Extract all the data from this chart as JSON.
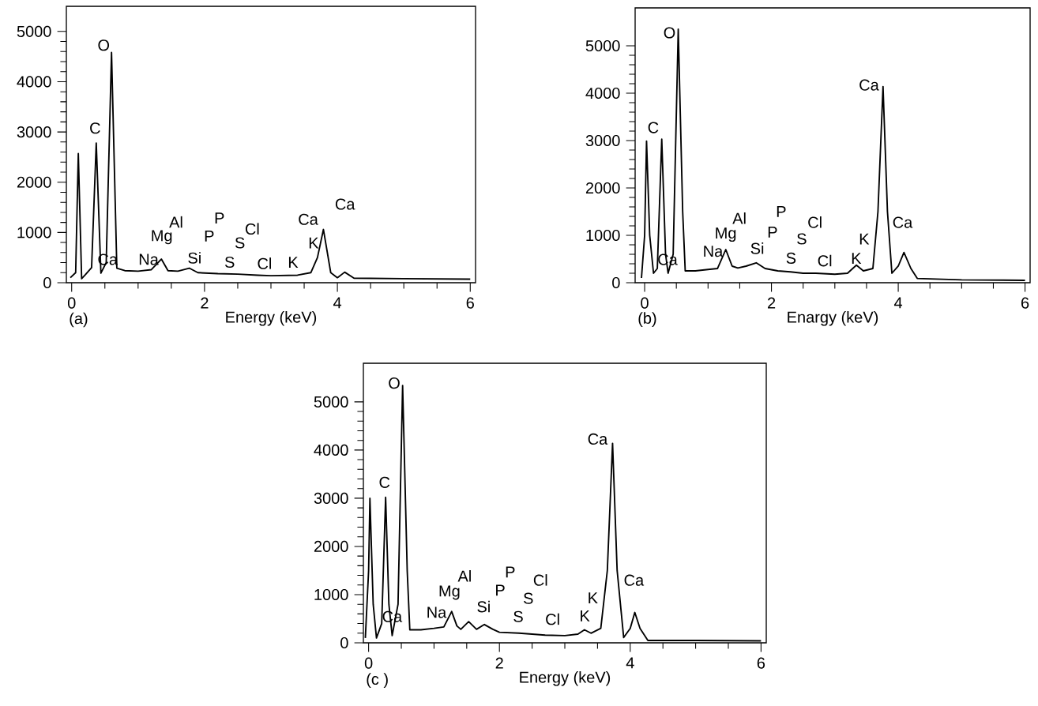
{
  "chart_data": [
    {
      "type": "line",
      "xlabel": "Energy (keV)",
      "xlim": [
        -0.08,
        6.08
      ],
      "ylim": [
        0,
        5500
      ],
      "xticks": [
        0,
        2,
        4,
        6
      ],
      "yticks": [
        0,
        1000,
        2000,
        3000,
        4000,
        5000
      ],
      "series": [
        {
          "color": "#000000",
          "x": [
            -0.02,
            0.06,
            0.1,
            0.15,
            0.2,
            0.3,
            0.37,
            0.44,
            0.52,
            0.6,
            0.68,
            0.8,
            1.0,
            1.2,
            1.35,
            1.45,
            1.6,
            1.77,
            1.9,
            2.2,
            2.5,
            2.8,
            3.0,
            3.4,
            3.6,
            3.7,
            3.79,
            3.9,
            4.0,
            4.11,
            4.25,
            5.0,
            6.0
          ],
          "values": [
            100,
            200,
            2570,
            80,
            150,
            300,
            2780,
            190,
            400,
            4580,
            290,
            240,
            230,
            260,
            470,
            240,
            230,
            290,
            200,
            180,
            170,
            150,
            140,
            150,
            200,
            500,
            1060,
            200,
            100,
            210,
            90,
            80,
            70
          ]
        }
      ],
      "annotations": [
        "C",
        "O",
        "Ca",
        "Na",
        "Mg",
        "Al",
        "Si",
        "P",
        "P",
        "Cl",
        "S",
        "S",
        "Cl",
        "K",
        "K",
        "Ca",
        "Ca",
        "(a)"
      ]
    },
    {
      "type": "line",
      "xlabel": "Enargy (keV)",
      "xlim": [
        -0.15,
        6.08
      ],
      "ylim": [
        0,
        5800
      ],
      "xticks": [
        0,
        2,
        4,
        6
      ],
      "yticks": [
        0,
        1000,
        2000,
        3000,
        4000,
        5000
      ],
      "series": [
        {
          "color": "#000000",
          "x": [
            -0.05,
            0.0,
            0.03,
            0.08,
            0.14,
            0.2,
            0.27,
            0.33,
            0.37,
            0.45,
            0.53,
            0.6,
            0.64,
            0.8,
            1.0,
            1.15,
            1.28,
            1.38,
            1.47,
            1.6,
            1.76,
            1.9,
            2.1,
            2.3,
            2.5,
            2.7,
            3.0,
            3.2,
            3.34,
            3.45,
            3.6,
            3.68,
            3.76,
            3.83,
            3.9,
            4.0,
            4.09,
            4.2,
            4.3,
            5.0,
            6.0
          ],
          "values": [
            100,
            1000,
            2990,
            1000,
            200,
            300,
            3030,
            600,
            200,
            600,
            5350,
            1500,
            250,
            250,
            280,
            300,
            700,
            350,
            310,
            350,
            420,
            300,
            250,
            230,
            200,
            200,
            180,
            200,
            370,
            250,
            300,
            1500,
            4140,
            1500,
            200,
            350,
            640,
            300,
            90,
            60,
            50
          ]
        }
      ],
      "annotations": [
        "Ca",
        "C",
        "O",
        "Na",
        "Mg",
        "Al",
        "Si",
        "P",
        "P",
        "Cl",
        "S",
        "S",
        "Cl",
        "K",
        "K",
        "Ca",
        "Ca",
        "(b)"
      ]
    },
    {
      "type": "line",
      "xlabel": "Energy (keV)",
      "xlim": [
        -0.08,
        6.08
      ],
      "ylim": [
        0,
        5800
      ],
      "xticks": [
        0,
        2,
        4,
        6
      ],
      "yticks": [
        0,
        1000,
        2000,
        3000,
        4000,
        5000
      ],
      "series": [
        {
          "color": "#000000",
          "x": [
            -0.05,
            0.0,
            0.02,
            0.07,
            0.12,
            0.2,
            0.26,
            0.31,
            0.36,
            0.45,
            0.52,
            0.59,
            0.63,
            0.8,
            1.0,
            1.15,
            1.27,
            1.35,
            1.41,
            1.53,
            1.65,
            1.77,
            1.9,
            2.0,
            2.3,
            2.7,
            3.0,
            3.2,
            3.3,
            3.4,
            3.55,
            3.65,
            3.73,
            3.8,
            3.9,
            4.0,
            4.07,
            4.15,
            4.27,
            5.0,
            6.0
          ],
          "values": [
            100,
            1500,
            3000,
            800,
            100,
            400,
            3020,
            800,
            150,
            800,
            5340,
            1500,
            270,
            270,
            300,
            330,
            650,
            350,
            280,
            440,
            280,
            380,
            280,
            220,
            200,
            160,
            150,
            180,
            270,
            200,
            300,
            1500,
            4140,
            1500,
            110,
            300,
            630,
            300,
            50,
            50,
            40
          ]
        }
      ],
      "annotations": [
        "Ca",
        "C",
        "O",
        "Na",
        "Mg",
        "Al",
        "Si",
        "P",
        "P",
        "Cl",
        "S",
        "S",
        "Cl",
        "K",
        "K",
        "Ca",
        "Ca",
        "(c )"
      ]
    }
  ]
}
